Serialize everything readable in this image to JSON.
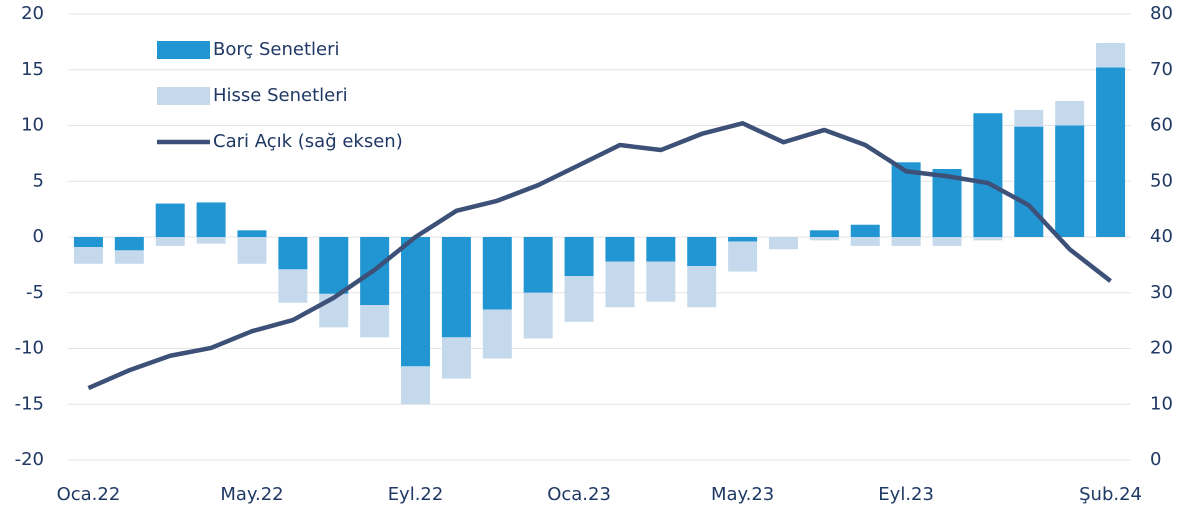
{
  "chart_data": {
    "type": "bar",
    "stacked": true,
    "categories": [
      "Oca.22",
      null,
      null,
      null,
      "May.22",
      null,
      null,
      null,
      "Eyl.22",
      null,
      null,
      null,
      "Oca.23",
      null,
      null,
      null,
      "May.23",
      null,
      null,
      null,
      "Eyl.23",
      null,
      null,
      null,
      null,
      "Şub.24"
    ],
    "series": [
      {
        "name": "Borç Senetleri",
        "type": "bar",
        "color": "#2196d3",
        "values": [
          -0.9,
          -1.2,
          3.0,
          3.1,
          0.6,
          -2.9,
          -5.1,
          -6.1,
          -11.6,
          -9.0,
          -6.5,
          -5.0,
          -3.5,
          -2.2,
          -2.2,
          -2.6,
          -0.4,
          0,
          0.6,
          1.1,
          6.7,
          6.1,
          11.1,
          9.9,
          10.0,
          15.2
        ]
      },
      {
        "name": "Hisse Senetleri",
        "type": "bar",
        "color": "#c5d9ec",
        "values": [
          -1.5,
          -1.2,
          -0.8,
          -0.6,
          -2.4,
          -3.0,
          -3.0,
          -2.9,
          -3.4,
          -3.7,
          -4.4,
          -4.1,
          -4.1,
          -4.1,
          -3.6,
          -3.7,
          -2.7,
          -1.1,
          -0.3,
          -0.8,
          -0.8,
          -0.8,
          -0.3,
          1.5,
          2.2,
          2.2
        ]
      },
      {
        "name": "Cari Açık (sağ eksen)",
        "type": "line",
        "axis": "y2",
        "color": "#3d5078",
        "values": [
          12.9,
          16.1,
          18.7,
          20.1,
          23.1,
          25.1,
          29.1,
          34.1,
          40.0,
          44.7,
          46.5,
          49.3,
          52.9,
          56.5,
          55.6,
          58.5,
          60.4,
          57.0,
          59.2,
          56.5,
          51.8,
          50.9,
          49.7,
          45.7,
          37.8,
          32.1
        ]
      }
    ],
    "ylim": [
      -20,
      20
    ],
    "yticks": [
      -20,
      -15,
      -10,
      -5,
      0,
      5,
      10,
      15,
      20
    ],
    "y2lim": [
      0,
      80
    ],
    "y2ticks": [
      0,
      10,
      20,
      30,
      40,
      50,
      60,
      70,
      80
    ],
    "grid": true,
    "legend": "top-left"
  }
}
